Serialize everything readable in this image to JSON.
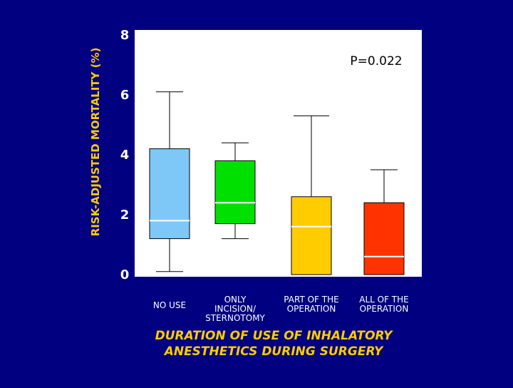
{
  "chart_data": {
    "type": "box",
    "ylabel": "RISK-ADJUSTED MORTALITY (%)",
    "xlabel_lines": [
      "DURATION OF USE OF INHALATORY",
      "ANESTHETICS DURING SURGERY"
    ],
    "annotation": "P=0.022",
    "ylim": [
      0,
      8
    ],
    "yticks": [
      "0",
      "2",
      "4",
      "6",
      "8"
    ],
    "categories": [
      {
        "label_lines": [
          "NO USE"
        ],
        "color": "#7ec8f8",
        "whisker_low": 0.1,
        "q1": 1.2,
        "median": 1.8,
        "q3": 4.2,
        "whisker_high": 6.1
      },
      {
        "label_lines": [
          "ONLY",
          "INCISION/",
          "STERNOTOMY"
        ],
        "color": "#00e000",
        "whisker_low": 1.2,
        "q1": 1.7,
        "median": 2.4,
        "q3": 3.8,
        "whisker_high": 4.4
      },
      {
        "label_lines": [
          "PART OF THE",
          "OPERATION"
        ],
        "color": "#ffcc00",
        "whisker_low": null,
        "q1": 0.0,
        "median": 1.6,
        "q3": 2.6,
        "whisker_high": 5.3
      },
      {
        "label_lines": [
          "ALL OF THE",
          "OPERATION"
        ],
        "color": "#ff3300",
        "whisker_low": null,
        "q1": 0.0,
        "median": 0.6,
        "q3": 2.4,
        "whisker_high": 3.5
      }
    ]
  }
}
